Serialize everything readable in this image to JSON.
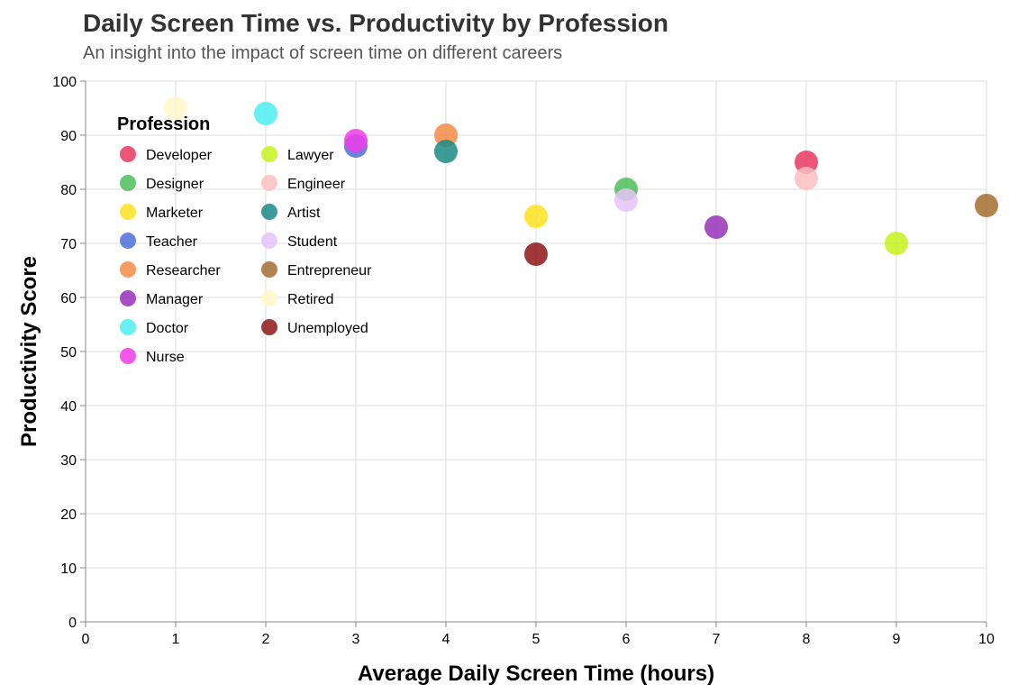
{
  "chart_data": {
    "type": "scatter",
    "title": "Daily Screen Time vs. Productivity by Profession",
    "subtitle": "An insight into the impact of screen time on different careers",
    "xlabel": "Average Daily Screen Time (hours)",
    "ylabel": "Productivity Score",
    "xlim": [
      0,
      10
    ],
    "ylim": [
      0,
      100
    ],
    "x_ticks": [
      "0",
      "1",
      "2",
      "3",
      "4",
      "5",
      "6",
      "7",
      "8",
      "9",
      "10"
    ],
    "y_ticks": [
      "0",
      "10",
      "20",
      "30",
      "40",
      "50",
      "60",
      "70",
      "80",
      "90",
      "100"
    ],
    "grid": true,
    "legend": {
      "title": "Profession",
      "placement": "top-left inside plot",
      "columns": 2
    },
    "series": [
      {
        "name": "Developer",
        "color": "#E8375E",
        "x": 8,
        "y": 85
      },
      {
        "name": "Designer",
        "color": "#4DBD5B",
        "x": 6,
        "y": 80
      },
      {
        "name": "Marketer",
        "color": "#FDE21E",
        "x": 5,
        "y": 75
      },
      {
        "name": "Teacher",
        "color": "#4C6EDB",
        "x": 3,
        "y": 88
      },
      {
        "name": "Researcher",
        "color": "#F58A45",
        "x": 4,
        "y": 90
      },
      {
        "name": "Manager",
        "color": "#9631B8",
        "x": 7,
        "y": 73
      },
      {
        "name": "Doctor",
        "color": "#4EEEF0",
        "x": 2,
        "y": 94
      },
      {
        "name": "Nurse",
        "color": "#F03BE8",
        "x": 3,
        "y": 89
      },
      {
        "name": "Lawyer",
        "color": "#C6F21D",
        "x": 9,
        "y": 70
      },
      {
        "name": "Engineer",
        "color": "#FBBEBE",
        "x": 8,
        "y": 82
      },
      {
        "name": "Artist",
        "color": "#1B8A86",
        "x": 4,
        "y": 87
      },
      {
        "name": "Student",
        "color": "#E6C3FA",
        "x": 6,
        "y": 78
      },
      {
        "name": "Entrepreneur",
        "color": "#A26D30",
        "x": 10,
        "y": 77
      },
      {
        "name": "Retired",
        "color": "#FFF7C8",
        "x": 1,
        "y": 95
      },
      {
        "name": "Unemployed",
        "color": "#8E1616",
        "x": 5,
        "y": 68
      }
    ]
  }
}
